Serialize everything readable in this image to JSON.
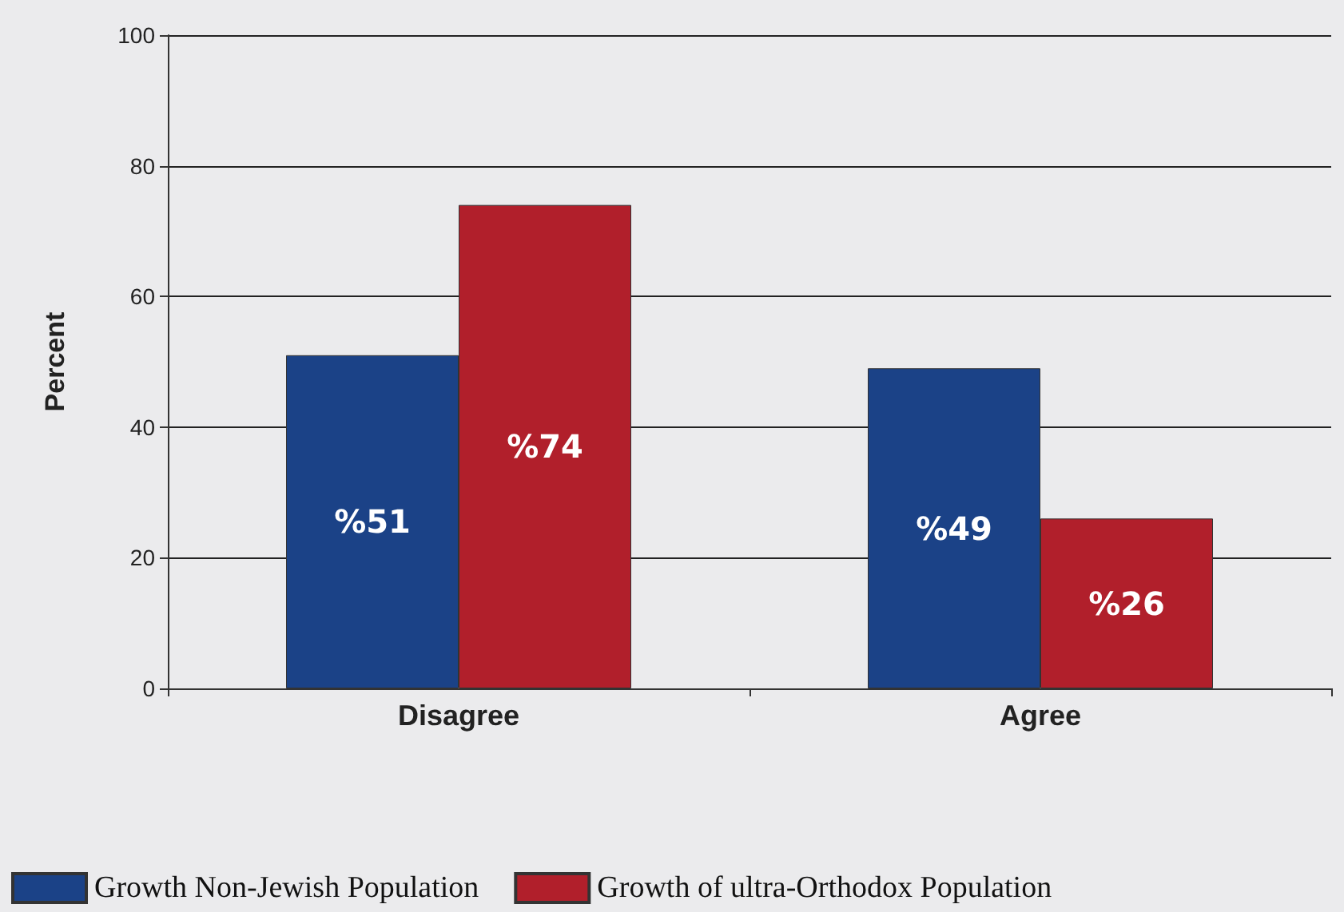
{
  "chart_data": {
    "type": "bar",
    "ylabel": "Percent",
    "categories": [
      "Disagree",
      "Agree"
    ],
    "series": [
      {
        "name": "Growth Non-Jewish Population",
        "color": "#1b4287",
        "values": [
          51,
          49
        ],
        "value_labels": [
          "%51",
          "%49"
        ]
      },
      {
        "name": "Growth of ultra-Orthodox Population",
        "color": "#b11f2b",
        "values": [
          74,
          26
        ],
        "value_labels": [
          "%74",
          "%26"
        ]
      }
    ],
    "ylim": [
      0,
      100
    ],
    "yticks": [
      0,
      20,
      40,
      60,
      80,
      100
    ],
    "grid": "y",
    "legend": "bottom left"
  }
}
